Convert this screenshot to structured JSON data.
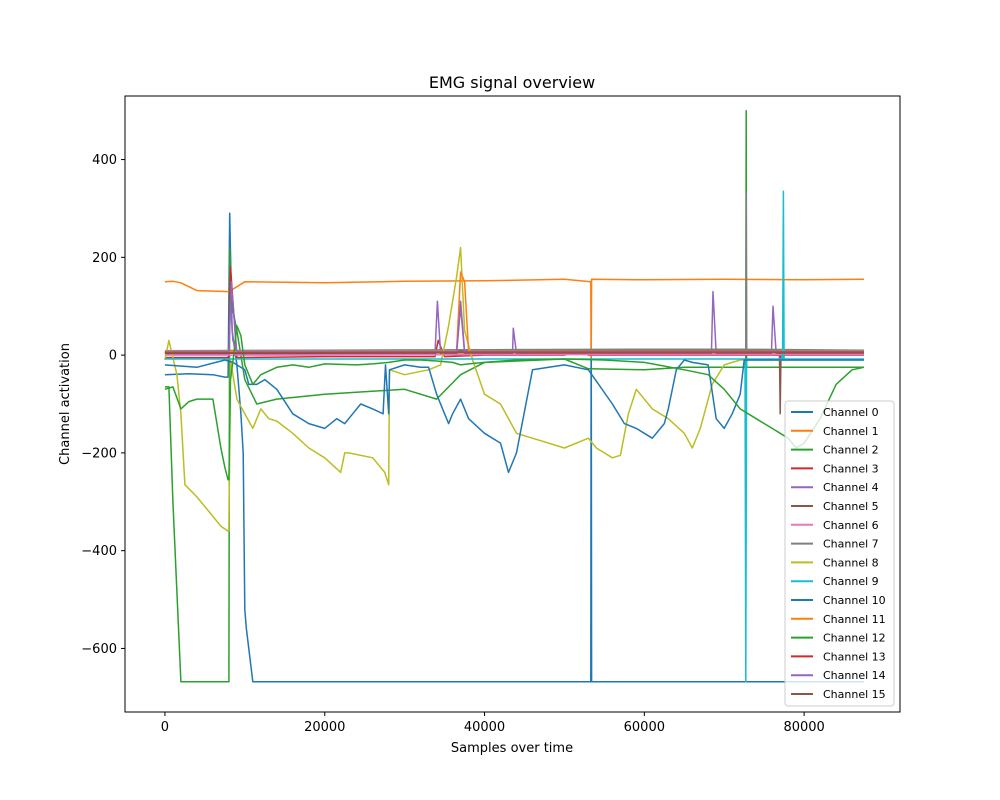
{
  "chart_data": {
    "type": "line",
    "title": "EMG signal overview",
    "xlabel": "Samples over time",
    "ylabel": "Channel activation",
    "xlim": [
      -5000,
      92000
    ],
    "ylim": [
      -730,
      530
    ],
    "xticks": [
      0,
      20000,
      40000,
      60000,
      80000
    ],
    "xtick_labels": [
      "0",
      "20000",
      "40000",
      "60000",
      "80000"
    ],
    "yticks": [
      -600,
      -400,
      -200,
      0,
      200,
      400
    ],
    "ytick_labels": [
      "−600",
      "−400",
      "−200",
      "0",
      "200",
      "400"
    ],
    "grid": false,
    "legend_position": "lower right",
    "series": [
      {
        "name": "Channel 0",
        "color": "#1f77b4",
        "x": [
          0,
          3000,
          6000,
          7500,
          7900,
          8100,
          8400,
          9000,
          9500,
          9800,
          10000,
          10200,
          11000,
          12000,
          20000,
          40000,
          53300,
          53350,
          53400,
          60000,
          70000,
          80000,
          87500
        ],
        "y": [
          -40,
          -38,
          -40,
          -45,
          -45,
          290,
          50,
          -20,
          -120,
          -200,
          -520,
          -560,
          -668,
          -668,
          -668,
          -668,
          -668,
          150,
          -668,
          -668,
          -668,
          -668,
          -668
        ]
      },
      {
        "name": "Channel 1",
        "color": "#ff7f0e",
        "x": [
          0,
          1000,
          2000,
          4000,
          8000,
          10000,
          20000,
          30000,
          40000,
          50000,
          53300,
          53350,
          53400,
          60000,
          70000,
          80000,
          87500
        ],
        "y": [
          150,
          151,
          148,
          132,
          130,
          150,
          148,
          151,
          152,
          155,
          150,
          -5,
          155,
          154,
          155,
          154,
          155
        ]
      },
      {
        "name": "Channel 2",
        "color": "#2ca02c",
        "x": [
          0,
          500,
          1000,
          2000,
          8000,
          8100,
          8400,
          9000,
          10000,
          11500,
          14000,
          20000,
          30000,
          34000,
          37000,
          40000,
          50000,
          53000,
          60000,
          65000,
          70000,
          72700,
          72750,
          72800,
          75000,
          80000,
          87500
        ],
        "y": [
          -65,
          -65,
          -300,
          -668,
          -668,
          220,
          100,
          50,
          -50,
          -100,
          -90,
          -80,
          -70,
          -90,
          -40,
          -15,
          -8,
          -28,
          -30,
          -25,
          -25,
          -25,
          500,
          -25,
          -25,
          -25,
          -25
        ]
      },
      {
        "name": "Channel 3",
        "color": "#d62728",
        "x": [
          0,
          8000,
          8200,
          9000,
          20000,
          33800,
          34200,
          35000,
          40000,
          50000,
          52000,
          53000,
          60000,
          70000,
          80000,
          87500
        ],
        "y": [
          -5,
          -5,
          180,
          -5,
          -3,
          -3,
          30,
          -3,
          0,
          0,
          10,
          0,
          0,
          0,
          0,
          0
        ]
      },
      {
        "name": "Channel 4",
        "color": "#9467bd",
        "x": [
          0,
          8000,
          8300,
          9000,
          20000,
          33800,
          34100,
          34500,
          36500,
          37000,
          37500,
          43500,
          43600,
          44000,
          60000,
          68400,
          68600,
          69000,
          75900,
          76100,
          76500,
          87500
        ],
        "y": [
          2,
          2,
          150,
          2,
          3,
          3,
          110,
          3,
          3,
          100,
          3,
          3,
          55,
          3,
          3,
          3,
          130,
          3,
          3,
          100,
          3,
          3
        ]
      },
      {
        "name": "Channel 5",
        "color": "#8c564b",
        "x": [
          0,
          20000,
          40000,
          60000,
          76900,
          77000,
          77100,
          80000,
          87500
        ],
        "y": [
          6,
          7,
          9,
          10,
          10,
          -120,
          10,
          10,
          10
        ]
      },
      {
        "name": "Channel 6",
        "color": "#e377c2",
        "x": [
          0,
          20000,
          40000,
          60000,
          87500
        ],
        "y": [
          0,
          0,
          1,
          1,
          1
        ]
      },
      {
        "name": "Channel 7",
        "color": "#7f7f7f",
        "x": [
          0,
          20000,
          40000,
          60000,
          72700,
          72750,
          72800,
          80000,
          87500
        ],
        "y": [
          9,
          10,
          11,
          12,
          12,
          330,
          12,
          11,
          10
        ]
      },
      {
        "name": "Channel 8",
        "color": "#bcbd22",
        "x": [
          0,
          500,
          1500,
          2000,
          2500,
          4000,
          6000,
          7000,
          7900,
          8000,
          8200,
          9000,
          10000,
          11000,
          12000,
          13000,
          14000,
          16000,
          18000,
          20000,
          22000,
          22500,
          23000,
          26000,
          27500,
          28000,
          28100,
          30000,
          33000,
          34500,
          35500,
          36500,
          37000,
          37500,
          38500,
          40000,
          42000,
          44000,
          46000,
          50000,
          53000,
          54000,
          56000,
          57000,
          58000,
          59000,
          61000,
          63000,
          65000,
          66000,
          67000,
          68500,
          70000,
          72000,
          74000,
          76000,
          78000,
          80000,
          82000,
          84000,
          87500
        ],
        "y": [
          -10,
          30,
          -40,
          -120,
          -265,
          -290,
          -330,
          -350,
          -360,
          -360,
          -10,
          -90,
          -120,
          -150,
          -110,
          -130,
          -135,
          -160,
          -190,
          -210,
          -240,
          -200,
          -200,
          -210,
          -240,
          -265,
          -30,
          -40,
          -30,
          -20,
          60,
          160,
          220,
          50,
          -10,
          -80,
          -100,
          -160,
          -170,
          -190,
          -170,
          -190,
          -210,
          -205,
          -120,
          -70,
          -110,
          -130,
          -160,
          -190,
          -150,
          -60,
          -20,
          -10,
          -10,
          -10,
          -10,
          -10,
          -10,
          -10,
          -10
        ]
      },
      {
        "name": "Channel 9",
        "color": "#17becf",
        "x": [
          0,
          20000,
          40000,
          60000,
          72600,
          72700,
          72800,
          77300,
          77400,
          77500,
          80000,
          87500
        ],
        "y": [
          -8,
          -8,
          -8,
          -8,
          -8,
          -668,
          -8,
          -8,
          335,
          -8,
          -8,
          -8
        ]
      },
      {
        "name": "Channel 10",
        "color": "#1f77b4",
        "x": [
          0,
          4000,
          7500,
          8500,
          10000,
          10500,
          11500,
          12500,
          14000,
          16000,
          18000,
          20000,
          21500,
          22500,
          23500,
          24500,
          26000,
          27300,
          27600,
          28000,
          28100,
          30000,
          32000,
          33000,
          34000,
          35000,
          35500,
          36000,
          37000,
          38000,
          40000,
          42000,
          43000,
          44000,
          46000,
          50000,
          53000,
          56000,
          57500,
          59000,
          60000,
          61000,
          62500,
          63000,
          64000,
          65000,
          66000,
          68000,
          69000,
          70000,
          71000,
          72000,
          72500,
          75000,
          80000,
          87500
        ],
        "y": [
          -20,
          -25,
          -10,
          -15,
          -30,
          -60,
          -60,
          -50,
          -70,
          -120,
          -140,
          -150,
          -130,
          -140,
          -120,
          -100,
          -110,
          -120,
          -20,
          -120,
          -30,
          -20,
          -25,
          -25,
          -80,
          -120,
          -140,
          -120,
          -90,
          -130,
          -160,
          -180,
          -240,
          -200,
          -30,
          -20,
          -30,
          -100,
          -140,
          -150,
          -160,
          -170,
          -140,
          -110,
          -30,
          -10,
          -15,
          -20,
          -130,
          -150,
          -120,
          -80,
          -10,
          -10,
          -10,
          -10
        ]
      },
      {
        "name": "Channel 11",
        "color": "#ff7f0e",
        "x": [
          0,
          20000,
          36500,
          37000,
          37500,
          38000,
          40000,
          60000,
          87500
        ],
        "y": [
          8,
          8,
          8,
          170,
          150,
          8,
          8,
          8,
          8
        ]
      },
      {
        "name": "Channel 12",
        "color": "#2ca02c",
        "x": [
          0,
          1000,
          2000,
          3000,
          4000,
          6000,
          7000,
          7500,
          7900,
          8000,
          8200,
          8600,
          9000,
          9500,
          10000,
          11000,
          12000,
          14000,
          16000,
          18000,
          20000,
          24000,
          26000,
          28000,
          30000,
          32000,
          34000,
          36000,
          37000,
          38000,
          40000,
          44000,
          50000,
          55000,
          60000,
          65000,
          68000,
          70000,
          72000,
          74000,
          76000,
          78000,
          79000,
          80000,
          82000,
          84000,
          86000,
          87500
        ],
        "y": [
          -70,
          -65,
          -110,
          -95,
          -90,
          -90,
          -190,
          -230,
          -255,
          -255,
          -50,
          0,
          60,
          40,
          -20,
          -60,
          -40,
          -25,
          -20,
          -25,
          -18,
          -20,
          -18,
          -15,
          -10,
          -10,
          -12,
          -15,
          -20,
          -18,
          -15,
          -10,
          -8,
          -10,
          -15,
          -30,
          -40,
          -70,
          -110,
          -130,
          -150,
          -170,
          -190,
          -180,
          -130,
          -60,
          -30,
          -25
        ]
      },
      {
        "name": "Channel 13",
        "color": "#d62728",
        "x": [
          0,
          20000,
          40000,
          60000,
          87500
        ],
        "y": [
          4,
          4,
          5,
          5,
          5
        ]
      },
      {
        "name": "Channel 14",
        "color": "#9467bd",
        "x": [
          0,
          8000,
          8200,
          8500,
          9000,
          20000,
          36500,
          37000,
          37500,
          40000,
          60000,
          87500
        ],
        "y": [
          7,
          7,
          110,
          30,
          7,
          7,
          7,
          110,
          7,
          7,
          7,
          7
        ]
      },
      {
        "name": "Channel 15",
        "color": "#8c564b",
        "x": [
          0,
          20000,
          40000,
          60000,
          87500
        ],
        "y": [
          5,
          5,
          6,
          6,
          6
        ]
      }
    ]
  }
}
